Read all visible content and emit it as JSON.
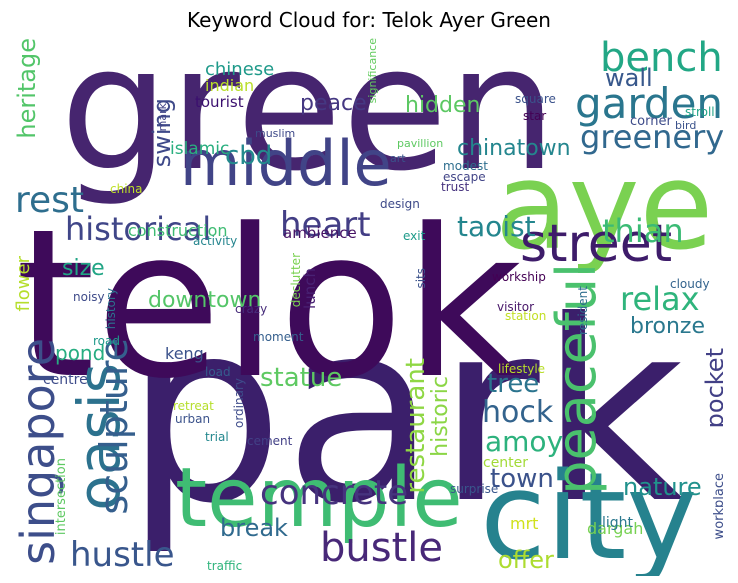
{
  "chart_data": {
    "type": "wordcloud",
    "title": "Keyword Cloud for: Telok Ayer Green",
    "words": [
      {
        "text": "park",
        "c": "#3b1f6b"
      },
      {
        "text": "telok",
        "c": "#3e0a5a"
      },
      {
        "text": "green",
        "c": "#46256f"
      },
      {
        "text": "ayer",
        "c": "#7ad151"
      },
      {
        "text": "city",
        "c": "#26828e"
      },
      {
        "text": "temple",
        "c": "#3fbc73"
      },
      {
        "text": "middle",
        "c": "#414487"
      },
      {
        "text": "street",
        "c": "#3e1c6a"
      },
      {
        "text": "garden",
        "c": "#2a768e"
      },
      {
        "text": "bench",
        "c": "#22a785"
      },
      {
        "text": "oasis",
        "c": "#2c728e"
      },
      {
        "text": "peaceful",
        "c": "#4ac16d"
      },
      {
        "text": "singapore",
        "c": "#3d4e8a"
      },
      {
        "text": "sculpture",
        "c": "#355f8d"
      },
      {
        "text": "bustle",
        "c": "#482878"
      },
      {
        "text": "hustle",
        "c": "#39568c"
      },
      {
        "text": "concrete",
        "c": "#46337e"
      },
      {
        "text": "heart",
        "c": "#433e85"
      },
      {
        "text": "historical",
        "c": "#404688"
      },
      {
        "text": "rest",
        "c": "#2e6e8e"
      },
      {
        "text": "greenery",
        "c": "#31688e"
      },
      {
        "text": "relax",
        "c": "#2fb47c"
      },
      {
        "text": "thian",
        "c": "#3bbb75"
      },
      {
        "text": "taoist",
        "c": "#24868e"
      },
      {
        "text": "hock",
        "c": "#33638d"
      },
      {
        "text": "amoy",
        "c": "#2db27d"
      },
      {
        "text": "town",
        "c": "#3b528b"
      },
      {
        "text": "tree",
        "c": "#2b748e"
      },
      {
        "text": "restaurant",
        "c": "#8fd744"
      },
      {
        "text": "statue",
        "c": "#5ec962"
      },
      {
        "text": "downtown",
        "c": "#54c568"
      },
      {
        "text": "cbd",
        "c": "#238a8d"
      },
      {
        "text": "swing",
        "c": "#3e4989"
      },
      {
        "text": "wall",
        "c": "#38588c"
      },
      {
        "text": "heritage",
        "c": "#52c569"
      },
      {
        "text": "chinatown",
        "c": "#24868e"
      },
      {
        "text": "hidden",
        "c": "#5cc863"
      },
      {
        "text": "peace",
        "c": "#453882"
      },
      {
        "text": "nature",
        "c": "#21918c"
      },
      {
        "text": "break",
        "c": "#306a8e"
      },
      {
        "text": "offer",
        "c": "#addc30"
      },
      {
        "text": "pocket",
        "c": "#424086"
      },
      {
        "text": "bronze",
        "c": "#2a788e"
      },
      {
        "text": "historic",
        "c": "#8bd646"
      },
      {
        "text": "size",
        "c": "#21a585"
      },
      {
        "text": "pond",
        "c": "#27ad81"
      },
      {
        "text": "flower",
        "c": "#b5de2b"
      },
      {
        "text": "chinese",
        "c": "#1f9a8a"
      },
      {
        "text": "indian",
        "c": "#b8de29"
      },
      {
        "text": "tourist",
        "c": "#3b0f6f"
      },
      {
        "text": "islamic",
        "c": "#29af7f"
      },
      {
        "text": "construction",
        "c": "#3fbc73"
      },
      {
        "text": "ambience",
        "c": "#471365"
      },
      {
        "text": "lunch",
        "c": "#482173"
      },
      {
        "text": "keng",
        "c": "#3b528b"
      },
      {
        "text": "centre",
        "c": "#3e4c8a"
      },
      {
        "text": "mrt",
        "c": "#d0e11c"
      },
      {
        "text": "dargah",
        "c": "#77d153"
      },
      {
        "text": "center",
        "c": "#a2da37"
      },
      {
        "text": "light",
        "c": "#2a788e"
      },
      {
        "text": "workplace",
        "c": "#3d4e8a"
      },
      {
        "text": "intersection",
        "c": "#5ec962"
      },
      {
        "text": "traffic",
        "c": "#2fb47c"
      },
      {
        "text": "trial",
        "c": "#23888e"
      },
      {
        "text": "urban",
        "c": "#3b528b"
      },
      {
        "text": "retreat",
        "c": "#b5de2b"
      },
      {
        "text": "ordinary",
        "c": "#3e4c8a"
      },
      {
        "text": "cement",
        "c": "#424086"
      },
      {
        "text": "surprise",
        "c": "#39568c"
      },
      {
        "text": "load",
        "c": "#365c8d"
      },
      {
        "text": "moment",
        "c": "#355f8d"
      },
      {
        "text": "crazy",
        "c": "#472d7b"
      },
      {
        "text": "declutter",
        "c": "#7ad151"
      },
      {
        "text": "history",
        "c": "#2c728e"
      },
      {
        "text": "road",
        "c": "#1f998a"
      },
      {
        "text": "noisy",
        "c": "#3e4a89"
      },
      {
        "text": "activity",
        "c": "#25858e"
      },
      {
        "text": "china",
        "c": "#bddf26"
      },
      {
        "text": "exit",
        "c": "#1e9b8a"
      },
      {
        "text": "design",
        "c": "#3e4a89"
      },
      {
        "text": "sits",
        "c": "#3b528b"
      },
      {
        "text": "workship",
        "c": "#440154"
      },
      {
        "text": "visitor",
        "c": "#481769"
      },
      {
        "text": "station",
        "c": "#c2df23"
      },
      {
        "text": "lifestyle",
        "c": "#b8de29"
      },
      {
        "text": "resident",
        "c": "#2e6e8e"
      },
      {
        "text": "cloudy",
        "c": "#33638d"
      },
      {
        "text": "muslim",
        "c": "#3e4989"
      },
      {
        "text": "mark",
        "c": "#414487"
      },
      {
        "text": "art",
        "c": "#3b528b"
      },
      {
        "text": "pavillion",
        "c": "#5ec962"
      },
      {
        "text": "significance",
        "c": "#63cb5f"
      },
      {
        "text": "modest",
        "c": "#2e6e8e"
      },
      {
        "text": "escape",
        "c": "#414487"
      },
      {
        "text": "trust",
        "c": "#46327e"
      },
      {
        "text": "square",
        "c": "#3b528b"
      },
      {
        "text": "star",
        "c": "#440154"
      },
      {
        "text": "corner",
        "c": "#3e4c8a"
      },
      {
        "text": "bird",
        "c": "#3b528b"
      },
      {
        "text": "stroll",
        "c": "#20a386"
      }
    ]
  }
}
